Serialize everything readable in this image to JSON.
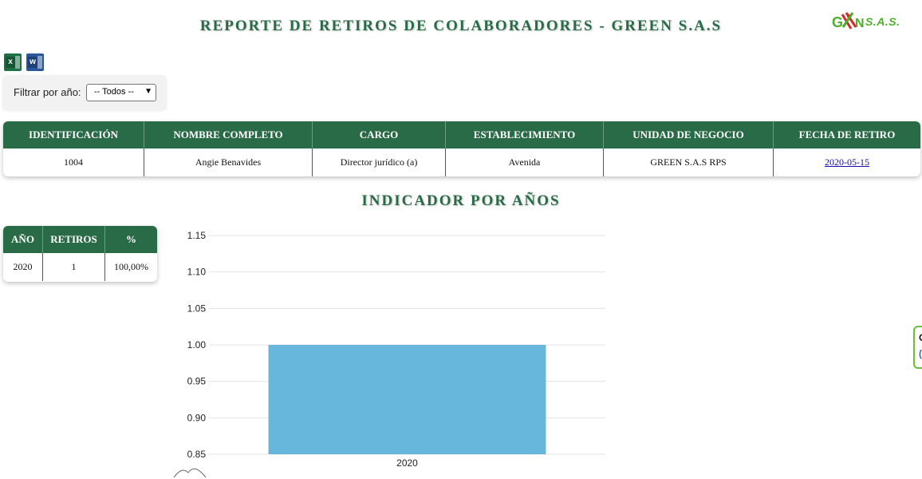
{
  "header": {
    "title": "REPORTE DE RETIROS DE COLABORADORES - GREEN S.A.S",
    "logo_text": "S.A.S."
  },
  "export": {
    "excel_letter": "x",
    "word_letter": "w"
  },
  "filter": {
    "label": "Filtrar por año:",
    "selected": "-- Todos --"
  },
  "main_table": {
    "headers": [
      "IDENTIFICACIÓN",
      "NOMBRE COMPLETO",
      "CARGO",
      "ESTABLECIMIENTO",
      "UNIDAD DE NEGOCIO",
      "FECHA DE RETIRO"
    ],
    "rows": [
      [
        "1004",
        "Angie Benavides",
        "Director jurídico (a)",
        "Avenida",
        "GREEN S.A.S RPS",
        "2020-05-15"
      ]
    ]
  },
  "indicator": {
    "title": "INDICADOR POR AÑOS",
    "headers": [
      "AÑO",
      "RETIROS",
      "%"
    ],
    "rows": [
      [
        "2020",
        "1",
        "100,00%"
      ]
    ]
  },
  "side_widget": {
    "a": "C",
    "b": "("
  },
  "colors": {
    "primary_green": "#2a6b47",
    "bar": "#67b6db",
    "link": "#1a0dab"
  },
  "chart_data": {
    "type": "bar",
    "categories": [
      "2020"
    ],
    "values": [
      1
    ],
    "title": "",
    "xlabel": "",
    "ylabel": "",
    "ylim": [
      0.85,
      1.15
    ],
    "yticks": [
      "0.85",
      "0.90",
      "0.95",
      "1.00",
      "1.05",
      "1.10",
      "1.15"
    ]
  }
}
